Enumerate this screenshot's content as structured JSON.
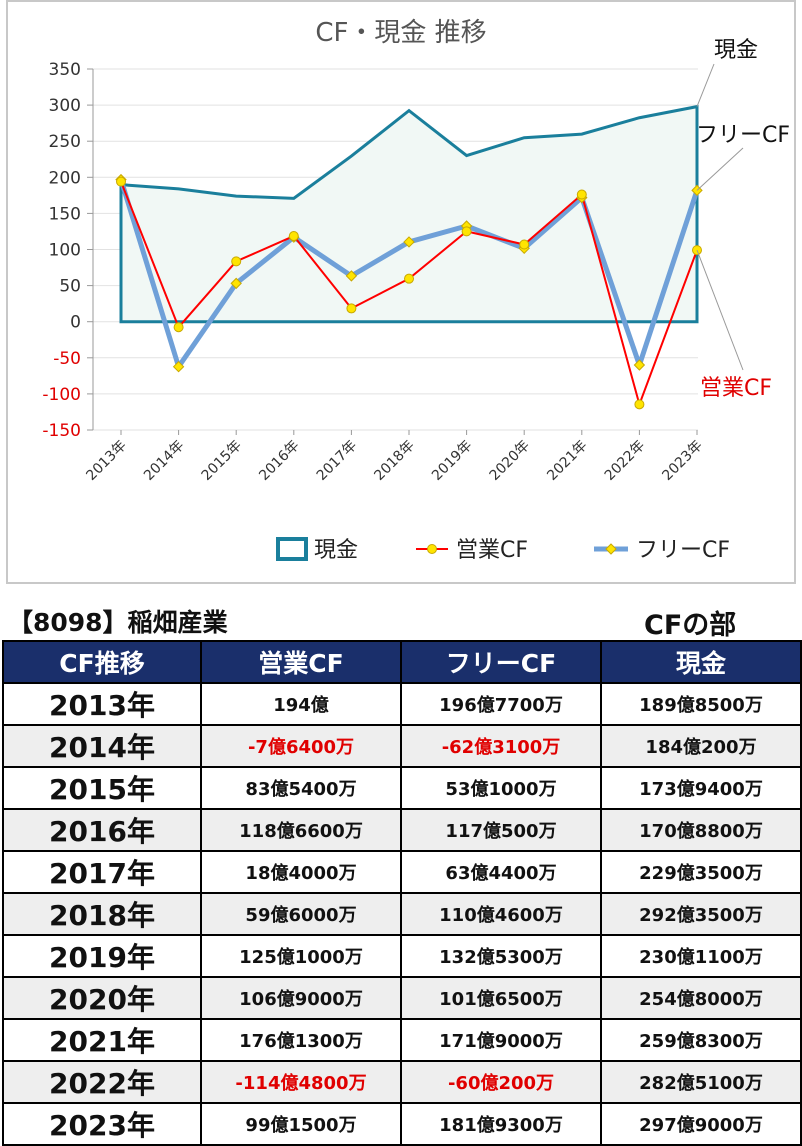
{
  "chart_data": {
    "type": "line",
    "title": "CF・現金 推移",
    "categories": [
      "2013年",
      "2014年",
      "2015年",
      "2016年",
      "2017年",
      "2018年",
      "2019年",
      "2020年",
      "2021年",
      "2022年",
      "2023年"
    ],
    "ylim": [
      -150,
      350
    ],
    "yticks": [
      350,
      300,
      250,
      200,
      150,
      100,
      50,
      0,
      -50,
      -100,
      -150
    ],
    "series": [
      {
        "name": "現金",
        "style": "area",
        "color": "#1a7f9c",
        "values": [
          189.85,
          184.02,
          173.94,
          170.88,
          229.35,
          292.35,
          230.11,
          254.8,
          259.83,
          282.51,
          297.9
        ]
      },
      {
        "name": "営業CF",
        "style": "line-marker",
        "color": "#ff0000",
        "values": [
          194.0,
          -7.64,
          83.54,
          118.66,
          18.4,
          59.6,
          125.1,
          106.9,
          176.13,
          -114.48,
          99.15
        ]
      },
      {
        "name": "フリーCF",
        "style": "line-marker",
        "color": "#6fa0d8",
        "values": [
          196.77,
          -62.31,
          53.1,
          117.05,
          63.44,
          110.46,
          132.53,
          101.65,
          171.9,
          -60.02,
          181.93
        ]
      }
    ],
    "annotations": [
      {
        "text": "現金",
        "color": "#111111"
      },
      {
        "text": "フリーCF",
        "color": "#111111"
      },
      {
        "text": "営業CF",
        "color": "#e00000"
      }
    ],
    "legend_position": "bottom",
    "grid": true
  },
  "company_title": "【8098】稲畑産業",
  "section_title": "CFの部",
  "table": {
    "headers": [
      "CF推移",
      "営業CF",
      "フリーCF",
      "現金"
    ],
    "rows": [
      {
        "year": "2013年",
        "op": "194億",
        "free": "196億7700万",
        "cash": "189億8500万"
      },
      {
        "year": "2014年",
        "op": "-7億6400万",
        "free": "-62億3100万",
        "cash": "184億200万"
      },
      {
        "year": "2015年",
        "op": "83億5400万",
        "free": "53億1000万",
        "cash": "173億9400万"
      },
      {
        "year": "2016年",
        "op": "118億6600万",
        "free": "117億500万",
        "cash": "170億8800万"
      },
      {
        "year": "2017年",
        "op": "18億4000万",
        "free": "63億4400万",
        "cash": "229億3500万"
      },
      {
        "year": "2018年",
        "op": "59億6000万",
        "free": "110億4600万",
        "cash": "292億3500万"
      },
      {
        "year": "2019年",
        "op": "125億1000万",
        "free": "132億5300万",
        "cash": "230億1100万"
      },
      {
        "year": "2020年",
        "op": "106億9000万",
        "free": "101億6500万",
        "cash": "254億8000万"
      },
      {
        "year": "2021年",
        "op": "176億1300万",
        "free": "171億9000万",
        "cash": "259億8300万"
      },
      {
        "year": "2022年",
        "op": "-114億4800万",
        "free": "-60億200万",
        "cash": "282億5100万"
      },
      {
        "year": "2023年",
        "op": "99億1500万",
        "free": "181億9300万",
        "cash": "297億9000万"
      }
    ]
  }
}
